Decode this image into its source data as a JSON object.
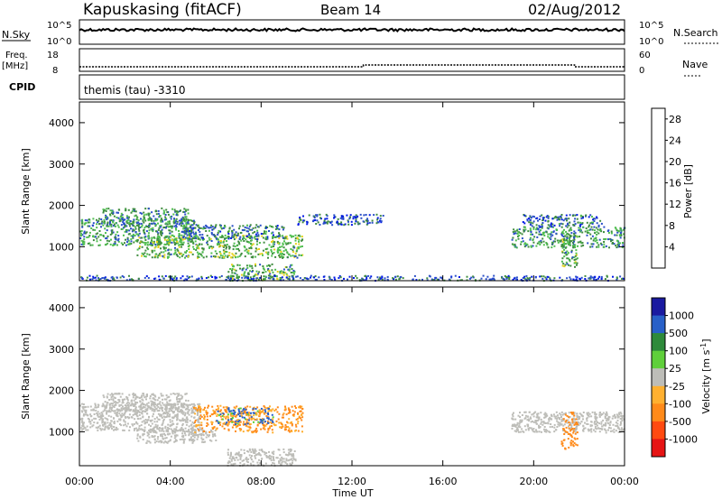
{
  "header": {
    "station": "Kapuskasing (fitACF)",
    "beam": "Beam 14",
    "date": "02/Aug/2012"
  },
  "status_panels": {
    "nsky_label": "N.Sky",
    "nsky_ticks": [
      "10^5",
      "10^0"
    ],
    "nsearch_label": "N.Search",
    "nsearch_ticks": [
      "10^5",
      "10^0"
    ],
    "freq_label": "Freq.",
    "freq_unit": "[MHz]",
    "freq_ticks": [
      "18",
      "8"
    ],
    "nave_label": "Nave",
    "nave_ticks": [
      "60",
      "0"
    ],
    "cpid_label": "CPID",
    "cpid_value": "themis (tau) -3310"
  },
  "colors": {
    "power": [
      "#0018e6",
      "#2a4fc8",
      "#3f8c3f",
      "#4fbf4f",
      "#e6d21e",
      "#f5a020",
      "#f26a10",
      "#e61e1e"
    ],
    "velocity_pos": [
      "#1a1aa0",
      "#2860c8",
      "#2e8a3a",
      "#5fcf3a"
    ],
    "velocity_neg": [
      "#ffb030",
      "#ff8a1a",
      "#ff4a10",
      "#e61414"
    ],
    "ground_scatter": "#bdbdb8"
  },
  "chart_data": [
    {
      "type": "heatmap",
      "title": "Power",
      "xlabel": "Time UT",
      "ylabel": "Slant Range [km]",
      "x_ticks": [
        "00:00",
        "04:00",
        "08:00",
        "12:00",
        "16:00",
        "20:00",
        "00:00"
      ],
      "xlim_hours": [
        0,
        24
      ],
      "y_ticks": [
        1000,
        2000,
        3000,
        4000
      ],
      "ylim": [
        180,
        4500
      ],
      "colorbar_label": "Power [dB]",
      "colorbar_ticks": [
        4,
        8,
        12,
        16,
        20,
        24,
        28
      ],
      "colorbar_range": [
        0,
        30
      ],
      "scatter_regions": [
        {
          "t": [
            0.0,
            5.3
          ],
          "r": [
            1050,
            1700
          ],
          "power": 10
        },
        {
          "t": [
            1.0,
            4.8
          ],
          "r": [
            1500,
            1950
          ],
          "power": 9
        },
        {
          "t": [
            2.5,
            9.8
          ],
          "r": [
            750,
            1300
          ],
          "power": 12
        },
        {
          "t": [
            4.5,
            9.0
          ],
          "r": [
            1200,
            1550
          ],
          "power": 8
        },
        {
          "t": [
            6.5,
            9.5
          ],
          "r": [
            200,
            600
          ],
          "power": 11
        },
        {
          "t": [
            9.5,
            13.5
          ],
          "r": [
            1550,
            1800
          ],
          "power": 6
        },
        {
          "t": [
            19.0,
            24.0
          ],
          "r": [
            1000,
            1500
          ],
          "power": 10
        },
        {
          "t": [
            19.5,
            23.0
          ],
          "r": [
            1500,
            1800
          ],
          "power": 7
        },
        {
          "t": [
            21.2,
            21.9
          ],
          "r": [
            500,
            1300
          ],
          "power": 12
        },
        {
          "t": [
            0.0,
            24.0
          ],
          "r": [
            200,
            320
          ],
          "power": 6
        }
      ]
    },
    {
      "type": "heatmap",
      "title": "Velocity",
      "xlabel": "Time UT",
      "ylabel": "Slant Range [km]",
      "x_ticks": [
        "00:00",
        "04:00",
        "08:00",
        "12:00",
        "16:00",
        "20:00",
        "00:00"
      ],
      "xlim_hours": [
        0,
        24
      ],
      "y_ticks": [
        1000,
        2000,
        3000,
        4000
      ],
      "ylim": [
        180,
        4500
      ],
      "colorbar_label": "Velocity [m s^-1]",
      "colorbar_ticks": [
        "1000",
        "500",
        "100",
        "25",
        "-25",
        "-100",
        "-500",
        "-1000"
      ],
      "ground_scatter_regions": [
        {
          "t": [
            0.0,
            5.3
          ],
          "r": [
            1050,
            1700
          ]
        },
        {
          "t": [
            1.0,
            4.8
          ],
          "r": [
            1500,
            1950
          ]
        },
        {
          "t": [
            2.5,
            6.0
          ],
          "r": [
            750,
            1100
          ]
        },
        {
          "t": [
            6.5,
            9.5
          ],
          "r": [
            200,
            600
          ]
        },
        {
          "t": [
            19.0,
            24.0
          ],
          "r": [
            1000,
            1500
          ]
        }
      ],
      "ionospheric_regions": [
        {
          "t": [
            5.0,
            9.8
          ],
          "r": [
            1000,
            1650
          ],
          "velocity": -150
        },
        {
          "t": [
            6.0,
            8.5
          ],
          "r": [
            1200,
            1600
          ],
          "velocity": 120
        },
        {
          "t": [
            21.2,
            21.9
          ],
          "r": [
            600,
            1500
          ],
          "velocity": -300
        }
      ]
    }
  ]
}
